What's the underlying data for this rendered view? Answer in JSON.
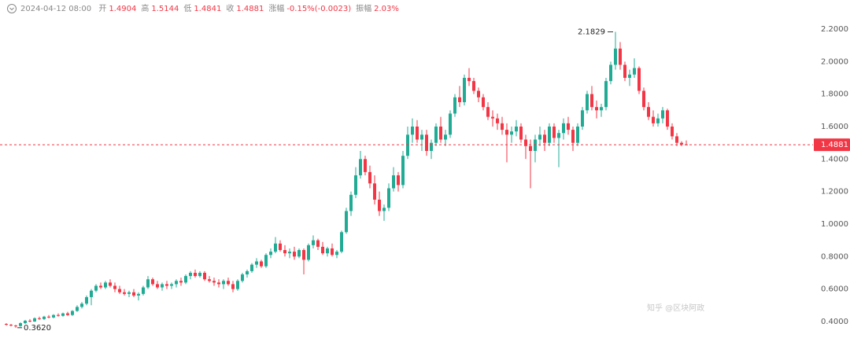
{
  "chart_data": {
    "type": "candlestick",
    "header": {
      "date": "2024-04-12 08:00",
      "items": [
        {
          "label": "开",
          "value": "1.4904"
        },
        {
          "label": "高",
          "value": "1.5144"
        },
        {
          "label": "低",
          "value": "1.4841"
        },
        {
          "label": "收",
          "value": "1.4881"
        },
        {
          "label": "涨幅",
          "value": "-0.15%(-0.0023)"
        },
        {
          "label": "振幅",
          "value": "2.03%"
        }
      ]
    },
    "watermark": "知乎 @区块阿政",
    "up_color": "#22ab94",
    "down_color": "#f23645",
    "ylim": [
      0.274,
      2.379
    ],
    "yticks": [
      {
        "value": 0.4,
        "label": "0.4000"
      },
      {
        "value": 0.6,
        "label": "0.6000"
      },
      {
        "value": 0.8,
        "label": "0.8000"
      },
      {
        "value": 1.0,
        "label": "1.0000"
      },
      {
        "value": 1.2,
        "label": "1.2000"
      },
      {
        "value": 1.4,
        "label": "1.4000"
      },
      {
        "value": 1.6,
        "label": "1.6000"
      },
      {
        "value": 1.8,
        "label": "1.8000"
      },
      {
        "value": 2.0,
        "label": "2.0000"
      },
      {
        "value": 2.2,
        "label": "2.2000"
      }
    ],
    "last_price": {
      "value": 1.4881,
      "label": "1.4881"
    },
    "annotations": [
      {
        "value": 2.1829,
        "label": "2.1829"
      },
      {
        "value": 0.362,
        "label": "0.3620"
      }
    ],
    "candles": [
      [
        0.385,
        0.39,
        0.375,
        0.38
      ],
      [
        0.38,
        0.385,
        0.37,
        0.375
      ],
      [
        0.375,
        0.38,
        0.362,
        0.372
      ],
      [
        0.372,
        0.395,
        0.368,
        0.39
      ],
      [
        0.39,
        0.41,
        0.385,
        0.405
      ],
      [
        0.405,
        0.415,
        0.395,
        0.4
      ],
      [
        0.4,
        0.425,
        0.398,
        0.42
      ],
      [
        0.42,
        0.43,
        0.41,
        0.415
      ],
      [
        0.415,
        0.435,
        0.41,
        0.43
      ],
      [
        0.43,
        0.44,
        0.42,
        0.425
      ],
      [
        0.425,
        0.445,
        0.42,
        0.44
      ],
      [
        0.44,
        0.45,
        0.43,
        0.435
      ],
      [
        0.435,
        0.455,
        0.43,
        0.45
      ],
      [
        0.45,
        0.46,
        0.435,
        0.44
      ],
      [
        0.44,
        0.47,
        0.435,
        0.465
      ],
      [
        0.465,
        0.5,
        0.46,
        0.49
      ],
      [
        0.49,
        0.52,
        0.48,
        0.51
      ],
      [
        0.51,
        0.56,
        0.5,
        0.55
      ],
      [
        0.55,
        0.6,
        0.5,
        0.59
      ],
      [
        0.59,
        0.63,
        0.58,
        0.62
      ],
      [
        0.62,
        0.64,
        0.6,
        0.61
      ],
      [
        0.61,
        0.65,
        0.6,
        0.64
      ],
      [
        0.64,
        0.66,
        0.61,
        0.62
      ],
      [
        0.62,
        0.64,
        0.58,
        0.6
      ],
      [
        0.6,
        0.62,
        0.57,
        0.58
      ],
      [
        0.58,
        0.6,
        0.56,
        0.57
      ],
      [
        0.57,
        0.59,
        0.55,
        0.58
      ],
      [
        0.58,
        0.6,
        0.55,
        0.56
      ],
      [
        0.56,
        0.58,
        0.53,
        0.57
      ],
      [
        0.57,
        0.62,
        0.56,
        0.61
      ],
      [
        0.61,
        0.68,
        0.6,
        0.66
      ],
      [
        0.66,
        0.67,
        0.62,
        0.63
      ],
      [
        0.63,
        0.65,
        0.6,
        0.61
      ],
      [
        0.61,
        0.64,
        0.59,
        0.63
      ],
      [
        0.63,
        0.65,
        0.6,
        0.62
      ],
      [
        0.62,
        0.64,
        0.6,
        0.63
      ],
      [
        0.63,
        0.66,
        0.61,
        0.65
      ],
      [
        0.65,
        0.67,
        0.62,
        0.64
      ],
      [
        0.64,
        0.69,
        0.63,
        0.68
      ],
      [
        0.68,
        0.71,
        0.66,
        0.7
      ],
      [
        0.7,
        0.72,
        0.67,
        0.68
      ],
      [
        0.68,
        0.71,
        0.67,
        0.7
      ],
      [
        0.7,
        0.71,
        0.65,
        0.66
      ],
      [
        0.66,
        0.68,
        0.64,
        0.65
      ],
      [
        0.65,
        0.67,
        0.62,
        0.64
      ],
      [
        0.64,
        0.66,
        0.61,
        0.63
      ],
      [
        0.63,
        0.66,
        0.6,
        0.65
      ],
      [
        0.65,
        0.67,
        0.62,
        0.63
      ],
      [
        0.63,
        0.65,
        0.58,
        0.6
      ],
      [
        0.6,
        0.66,
        0.59,
        0.65
      ],
      [
        0.65,
        0.7,
        0.64,
        0.69
      ],
      [
        0.69,
        0.72,
        0.67,
        0.71
      ],
      [
        0.71,
        0.76,
        0.7,
        0.75
      ],
      [
        0.75,
        0.79,
        0.73,
        0.77
      ],
      [
        0.77,
        0.78,
        0.73,
        0.74
      ],
      [
        0.74,
        0.82,
        0.73,
        0.81
      ],
      [
        0.81,
        0.85,
        0.79,
        0.83
      ],
      [
        0.83,
        0.92,
        0.82,
        0.88
      ],
      [
        0.88,
        0.9,
        0.83,
        0.84
      ],
      [
        0.84,
        0.87,
        0.8,
        0.82
      ],
      [
        0.82,
        0.85,
        0.79,
        0.83
      ],
      [
        0.83,
        0.86,
        0.78,
        0.8
      ],
      [
        0.8,
        0.85,
        0.79,
        0.84
      ],
      [
        0.84,
        0.85,
        0.69,
        0.78
      ],
      [
        0.78,
        0.88,
        0.77,
        0.87
      ],
      [
        0.87,
        0.93,
        0.85,
        0.9
      ],
      [
        0.9,
        0.91,
        0.84,
        0.86
      ],
      [
        0.86,
        0.89,
        0.81,
        0.82
      ],
      [
        0.82,
        0.86,
        0.8,
        0.85
      ],
      [
        0.85,
        0.88,
        0.8,
        0.81
      ],
      [
        0.81,
        0.84,
        0.79,
        0.83
      ],
      [
        0.83,
        0.96,
        0.82,
        0.95
      ],
      [
        0.95,
        1.1,
        0.94,
        1.08
      ],
      [
        1.08,
        1.2,
        1.05,
        1.18
      ],
      [
        1.18,
        1.35,
        1.16,
        1.3
      ],
      [
        1.3,
        1.45,
        1.28,
        1.4
      ],
      [
        1.4,
        1.42,
        1.3,
        1.32
      ],
      [
        1.32,
        1.36,
        1.22,
        1.25
      ],
      [
        1.25,
        1.3,
        1.12,
        1.15
      ],
      [
        1.15,
        1.2,
        1.05,
        1.08
      ],
      [
        1.08,
        1.12,
        1.02,
        1.1
      ],
      [
        1.1,
        1.25,
        1.08,
        1.22
      ],
      [
        1.22,
        1.35,
        1.2,
        1.3
      ],
      [
        1.3,
        1.32,
        1.2,
        1.24
      ],
      [
        1.24,
        1.45,
        1.22,
        1.42
      ],
      [
        1.42,
        1.6,
        1.4,
        1.55
      ],
      [
        1.55,
        1.65,
        1.5,
        1.6
      ],
      [
        1.6,
        1.64,
        1.5,
        1.52
      ],
      [
        1.52,
        1.58,
        1.45,
        1.55
      ],
      [
        1.55,
        1.58,
        1.42,
        1.45
      ],
      [
        1.45,
        1.52,
        1.4,
        1.5
      ],
      [
        1.5,
        1.62,
        1.48,
        1.6
      ],
      [
        1.6,
        1.66,
        1.5,
        1.52
      ],
      [
        1.52,
        1.58,
        1.48,
        1.55
      ],
      [
        1.55,
        1.7,
        1.53,
        1.68
      ],
      [
        1.68,
        1.8,
        1.66,
        1.78
      ],
      [
        1.78,
        1.85,
        1.72,
        1.75
      ],
      [
        1.75,
        1.92,
        1.73,
        1.9
      ],
      [
        1.9,
        1.96,
        1.85,
        1.88
      ],
      [
        1.88,
        1.9,
        1.8,
        1.82
      ],
      [
        1.82,
        1.84,
        1.75,
        1.78
      ],
      [
        1.78,
        1.8,
        1.7,
        1.72
      ],
      [
        1.72,
        1.75,
        1.64,
        1.66
      ],
      [
        1.66,
        1.7,
        1.6,
        1.65
      ],
      [
        1.65,
        1.68,
        1.58,
        1.62
      ],
      [
        1.62,
        1.66,
        1.55,
        1.58
      ],
      [
        1.58,
        1.62,
        1.38,
        1.55
      ],
      [
        1.55,
        1.6,
        1.5,
        1.57
      ],
      [
        1.57,
        1.64,
        1.54,
        1.6
      ],
      [
        1.6,
        1.62,
        1.5,
        1.52
      ],
      [
        1.52,
        1.55,
        1.4,
        1.48
      ],
      [
        1.48,
        1.52,
        1.22,
        1.45
      ],
      [
        1.45,
        1.55,
        1.38,
        1.52
      ],
      [
        1.52,
        1.6,
        1.48,
        1.55
      ],
      [
        1.55,
        1.58,
        1.45,
        1.5
      ],
      [
        1.5,
        1.62,
        1.48,
        1.6
      ],
      [
        1.6,
        1.62,
        1.5,
        1.53
      ],
      [
        1.53,
        1.58,
        1.35,
        1.56
      ],
      [
        1.56,
        1.65,
        1.52,
        1.62
      ],
      [
        1.62,
        1.66,
        1.55,
        1.58
      ],
      [
        1.58,
        1.6,
        1.45,
        1.5
      ],
      [
        1.5,
        1.62,
        1.48,
        1.6
      ],
      [
        1.6,
        1.72,
        1.58,
        1.7
      ],
      [
        1.7,
        1.82,
        1.68,
        1.8
      ],
      [
        1.8,
        1.85,
        1.7,
        1.72
      ],
      [
        1.72,
        1.76,
        1.65,
        1.7
      ],
      [
        1.7,
        1.74,
        1.66,
        1.72
      ],
      [
        1.72,
        1.9,
        1.7,
        1.88
      ],
      [
        1.88,
        2.0,
        1.86,
        1.98
      ],
      [
        1.98,
        2.1829,
        1.95,
        2.08
      ],
      [
        2.08,
        2.12,
        1.95,
        1.98
      ],
      [
        1.98,
        2.0,
        1.88,
        1.9
      ],
      [
        1.9,
        1.95,
        1.85,
        1.92
      ],
      [
        1.92,
        2.02,
        1.9,
        1.96
      ],
      [
        1.96,
        1.97,
        1.8,
        1.82
      ],
      [
        1.82,
        1.84,
        1.7,
        1.72
      ],
      [
        1.72,
        1.75,
        1.64,
        1.66
      ],
      [
        1.66,
        1.7,
        1.6,
        1.62
      ],
      [
        1.62,
        1.68,
        1.6,
        1.65
      ],
      [
        1.65,
        1.72,
        1.62,
        1.7
      ],
      [
        1.7,
        1.71,
        1.58,
        1.6
      ],
      [
        1.6,
        1.62,
        1.52,
        1.54
      ],
      [
        1.54,
        1.56,
        1.48,
        1.5
      ],
      [
        1.5,
        1.51,
        1.48,
        1.49
      ],
      [
        1.4904,
        1.5144,
        1.4841,
        1.4881
      ]
    ]
  }
}
